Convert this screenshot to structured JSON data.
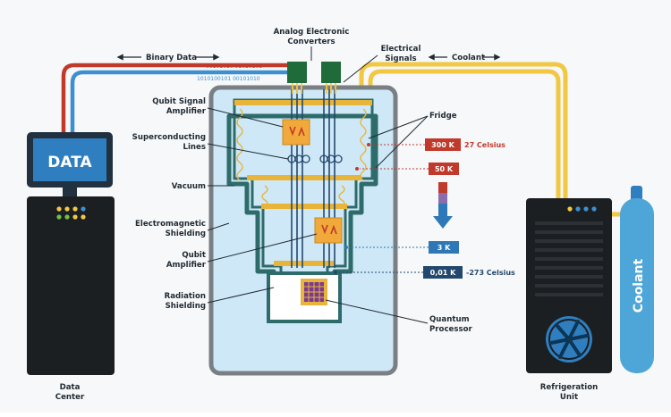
{
  "labels": {
    "binary_data": "Binary Data",
    "analog_line1": "Analog Electronic",
    "analog_line2": "Converters",
    "electrical_line1": "Electrical",
    "electrical_line2": "Signals",
    "coolant_flow": "Coolant",
    "qsa_line1": "Qubit Signal",
    "qsa_line2": "Amplifier",
    "sl_line1": "Superconducting",
    "sl_line2": "Lines",
    "vacuum": "Vacuum",
    "em_line1": "Electromagnetic",
    "em_line2": "Shielding",
    "qa_line1": "Qubit",
    "qa_line2": "Amplifier",
    "rad_line1": "Radiation",
    "rad_line2": "Shielding",
    "fridge": "Fridge",
    "qp_line1": "Quantum",
    "qp_line2": "Processor",
    "dc_line1": "Data",
    "dc_line2": "Center",
    "ru_line1": "Refrigeration",
    "ru_line2": "Unit",
    "screen_text": "DATA",
    "tank_text": "Coolant"
  },
  "temperatures": [
    {
      "value": "300 K",
      "note": "27 Celsius",
      "color": "#c0392b"
    },
    {
      "value": "50 K",
      "note": "",
      "color": "#c0392b"
    },
    {
      "value": "3 K",
      "note": "",
      "color": "#2e78b7"
    },
    {
      "value": "0,01 K",
      "note": "-273 Celsius",
      "color": "#23486e"
    }
  ],
  "binary_strings": {
    "red": "00101010 01010101",
    "blue": "1010100101 00101010"
  },
  "colors": {
    "red_line": "#c0392b",
    "blue_line": "#3d8fd1",
    "coolant_line": "#f2c744",
    "chamber_fill": "#cfe8f7",
    "shield_teal": "#2e6b6b",
    "converter_green": "#1f6b3a",
    "gold_plate": "#e8b53a"
  }
}
